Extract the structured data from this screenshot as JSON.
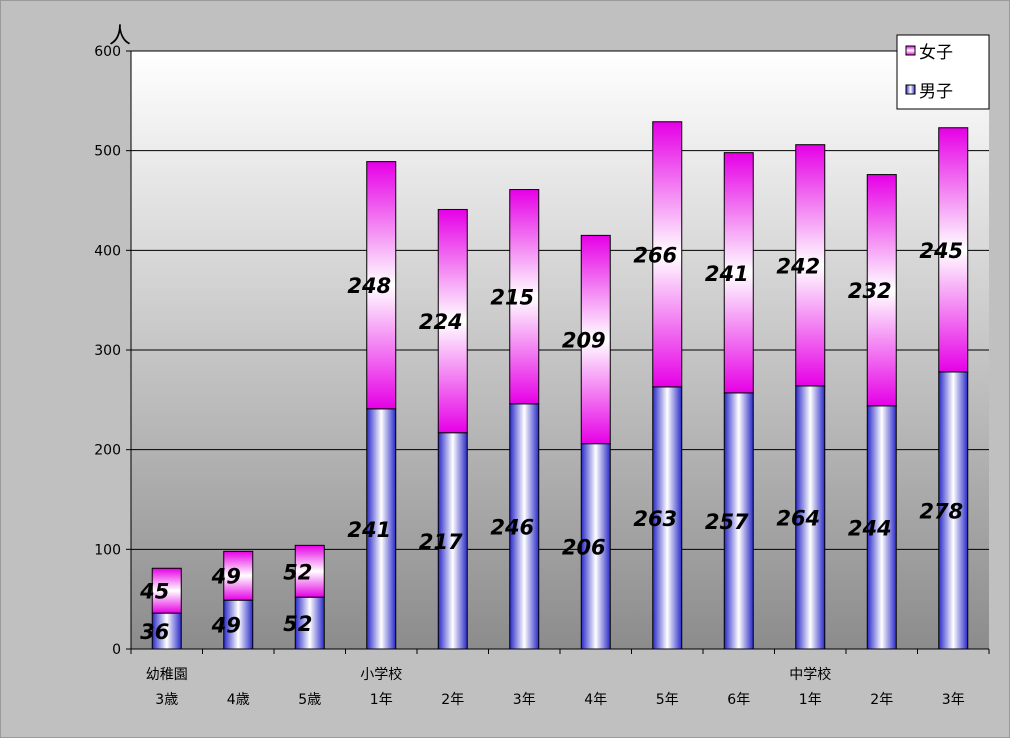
{
  "chart_data": {
    "type": "bar",
    "stacked": true,
    "ylabel": "人",
    "ylim": [
      0,
      600
    ],
    "yticks": [
      0,
      100,
      200,
      300,
      400,
      500,
      600
    ],
    "grid": true,
    "legend_position": "top-right",
    "categories": [
      "3歳",
      "4歳",
      "5歳",
      "1年",
      "2年",
      "3年",
      "4年",
      "5年",
      "6年",
      "1年",
      "2年",
      "3年"
    ],
    "group_labels": [
      {
        "label": "幼稚園",
        "category_index": 0
      },
      {
        "label": "小学校",
        "category_index": 3
      },
      {
        "label": "中学校",
        "category_index": 9
      }
    ],
    "series": [
      {
        "name": "男子",
        "color": "#3b3bd9",
        "values": [
          36,
          49,
          52,
          241,
          217,
          246,
          206,
          263,
          257,
          264,
          244,
          278
        ]
      },
      {
        "name": "女子",
        "color": "#e600e6",
        "values": [
          45,
          49,
          52,
          248,
          224,
          215,
          209,
          266,
          241,
          242,
          232,
          245
        ]
      }
    ]
  }
}
